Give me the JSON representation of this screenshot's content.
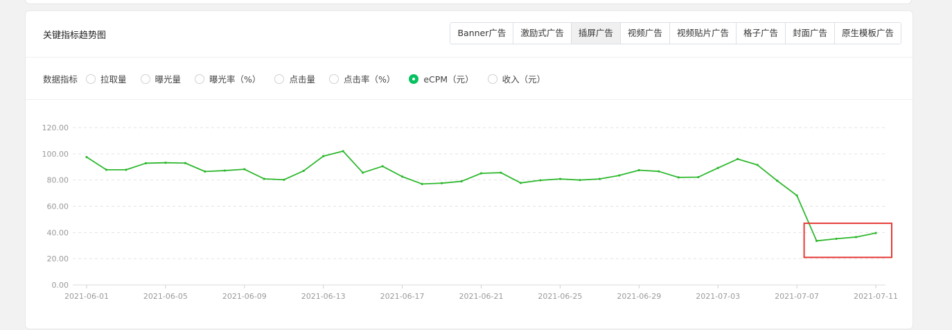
{
  "card": {
    "title": "关键指标趋势图"
  },
  "tabs": [
    {
      "label": "Banner广告",
      "active": false
    },
    {
      "label": "激励式广告",
      "active": false
    },
    {
      "label": "插屏广告",
      "active": true
    },
    {
      "label": "视频广告",
      "active": false
    },
    {
      "label": "视频贴片广告",
      "active": false
    },
    {
      "label": "格子广告",
      "active": false
    },
    {
      "label": "封面广告",
      "active": false
    },
    {
      "label": "原生模板广告",
      "active": false
    }
  ],
  "metrics": {
    "label": "数据指标",
    "options": [
      {
        "label": "拉取量",
        "checked": false
      },
      {
        "label": "曝光量",
        "checked": false
      },
      {
        "label": "曝光率（%）",
        "checked": false
      },
      {
        "label": "点击量",
        "checked": false
      },
      {
        "label": "点击率（%）",
        "checked": false
      },
      {
        "label": "eCPM（元）",
        "checked": true
      },
      {
        "label": "收入（元）",
        "checked": false
      }
    ]
  },
  "colors": {
    "line": "#2db82d",
    "accent": "#07c160",
    "highlight_box": "#e53935"
  },
  "chart_data": {
    "type": "line",
    "title": "",
    "xlabel": "",
    "ylabel": "",
    "ylim": [
      0,
      120
    ],
    "yticks": [
      "0.00",
      "20.00",
      "40.00",
      "60.00",
      "80.00",
      "100.00",
      "120.00"
    ],
    "x": [
      "2021-06-01",
      "2021-06-02",
      "2021-06-03",
      "2021-06-04",
      "2021-06-05",
      "2021-06-06",
      "2021-06-07",
      "2021-06-08",
      "2021-06-09",
      "2021-06-10",
      "2021-06-11",
      "2021-06-12",
      "2021-06-13",
      "2021-06-14",
      "2021-06-15",
      "2021-06-16",
      "2021-06-17",
      "2021-06-18",
      "2021-06-19",
      "2021-06-20",
      "2021-06-21",
      "2021-06-22",
      "2021-06-23",
      "2021-06-24",
      "2021-06-25",
      "2021-06-26",
      "2021-06-27",
      "2021-06-28",
      "2021-06-29",
      "2021-06-30",
      "2021-07-01",
      "2021-07-02",
      "2021-07-03",
      "2021-07-04",
      "2021-07-05",
      "2021-07-06",
      "2021-07-07",
      "2021-07-08",
      "2021-07-09",
      "2021-07-10",
      "2021-07-11"
    ],
    "xticks": [
      "2021-06-01",
      "2021-06-05",
      "2021-06-09",
      "2021-06-13",
      "2021-06-17",
      "2021-06-21",
      "2021-06-25",
      "2021-06-29",
      "2021-07-03",
      "2021-07-07",
      "2021-07-11"
    ],
    "series": [
      {
        "values": [
          97.5,
          87.8,
          87.8,
          92.8,
          93.2,
          92.9,
          86.5,
          87.2,
          88.2,
          80.9,
          80.2,
          87.0,
          98.2,
          102.0,
          85.6,
          90.5,
          82.6,
          77.0,
          77.6,
          79.0,
          85.1,
          85.6,
          77.8,
          79.8,
          80.8,
          80.0,
          80.8,
          83.5,
          87.5,
          86.6,
          82.0,
          82.2,
          89.2,
          96.0,
          91.5,
          79.5,
          68.2,
          33.6,
          35.2,
          36.5,
          39.6
        ]
      }
    ],
    "highlight": {
      "x_start": "2021-07-08",
      "x_end": "2021-07-11",
      "y_range": [
        21,
        47
      ]
    }
  }
}
